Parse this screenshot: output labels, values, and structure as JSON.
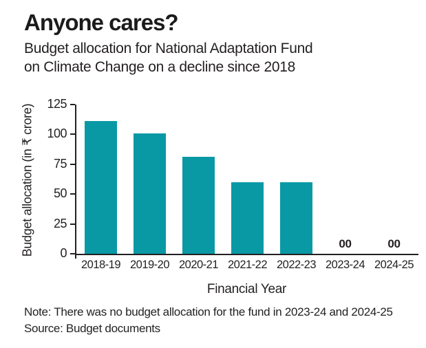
{
  "header": {
    "title": "Anyone cares?",
    "subtitle_lines": [
      "Budget allocation for National Adaptation Fund",
      "on Climate Change on a decline since 2018"
    ]
  },
  "chart_data": {
    "type": "bar",
    "categories": [
      "2018-19",
      "2019-20",
      "2020-21",
      "2021-22",
      "2022-23",
      "2023-24",
      "2024-25"
    ],
    "values": [
      111,
      101,
      81,
      60,
      60,
      0,
      0
    ],
    "title": "Anyone cares?",
    "xlabel": "Financial Year",
    "ylabel": "Budget allocation (in ₹ crore)",
    "ylim": [
      0,
      125
    ],
    "yticks": [
      0,
      25,
      50,
      75,
      100,
      125
    ],
    "grid": false,
    "legend": false,
    "bar_color": "#0999a5",
    "axis_color": "#231f20",
    "zero_label": "00"
  },
  "footer": {
    "note": "Note: There was no budget allocation for the fund in 2023-24 and 2024-25",
    "source": "Source: Budget documents"
  }
}
